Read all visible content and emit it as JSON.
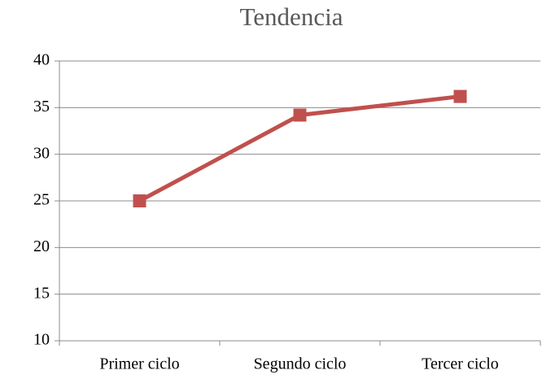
{
  "chart_data": {
    "type": "line",
    "title": "Tendencia",
    "categories": [
      "Primer ciclo",
      "Segundo ciclo",
      "Tercer ciclo"
    ],
    "values": [
      25,
      34.2,
      36.2
    ],
    "color": "#c0504d",
    "ylim": [
      10,
      40
    ],
    "yticks": [
      10,
      15,
      20,
      25,
      30,
      35,
      40
    ],
    "grid": true
  }
}
